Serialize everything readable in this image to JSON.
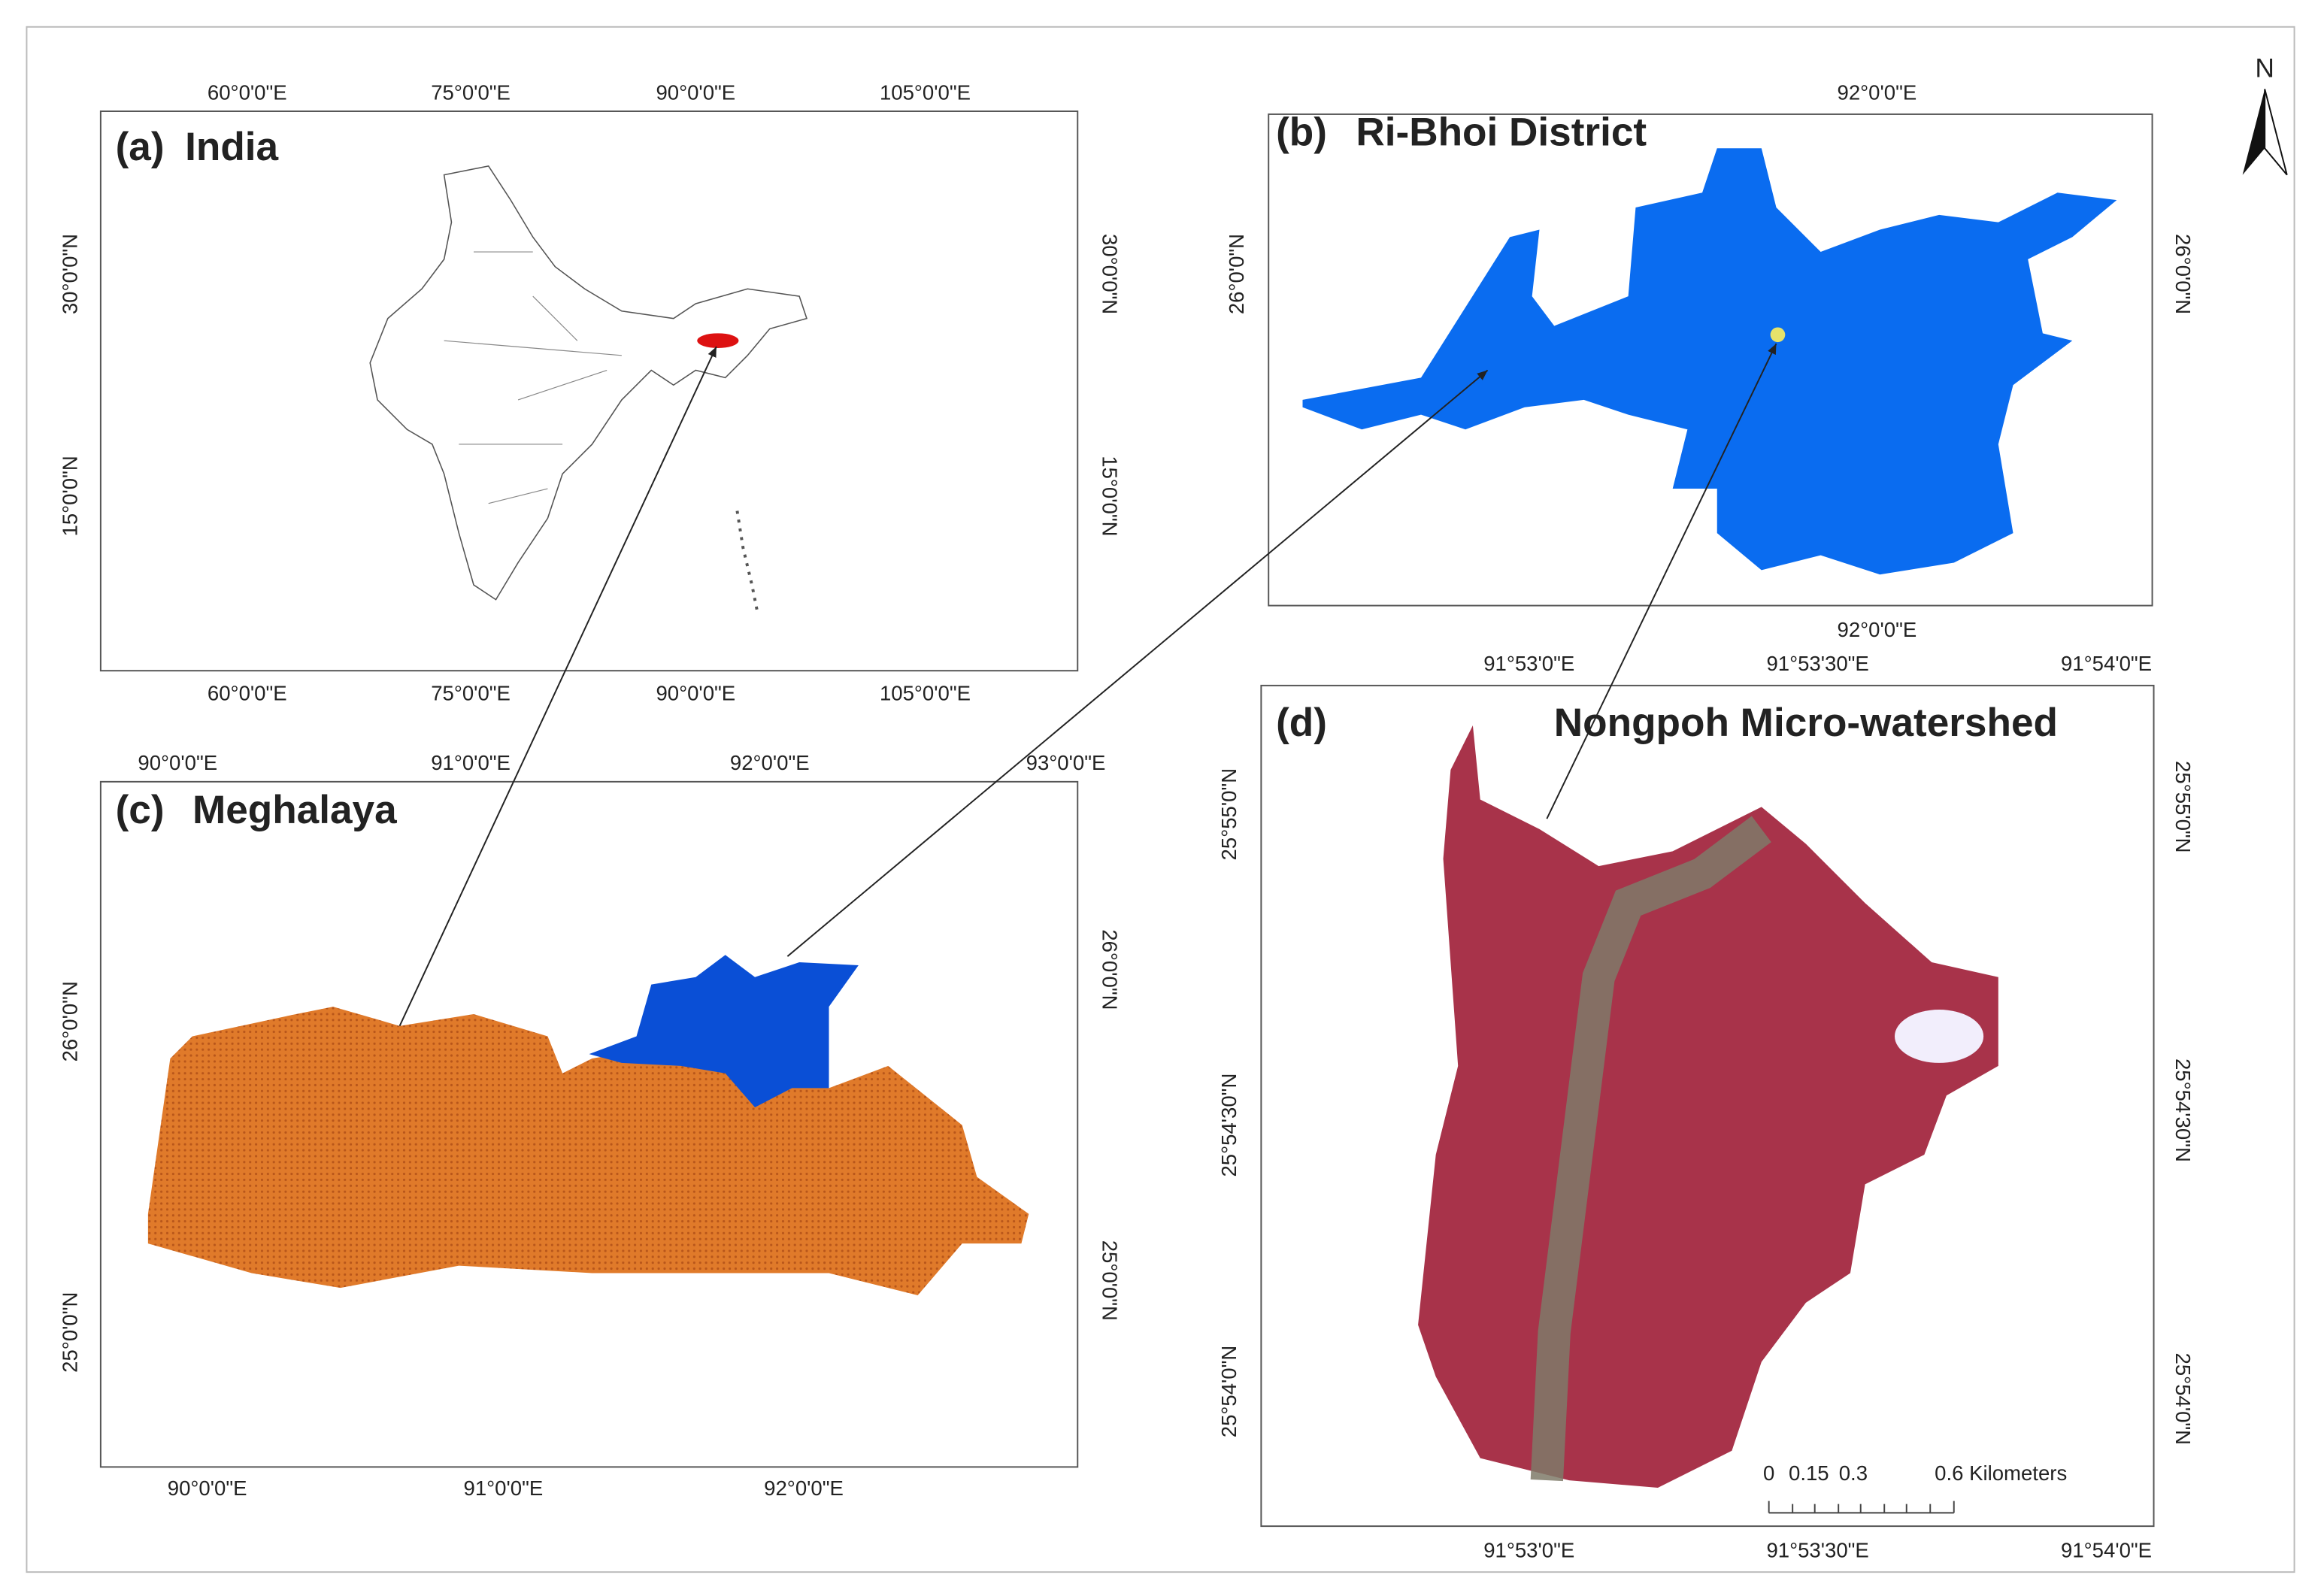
{
  "north": "N",
  "panels": [
    {
      "label": "(a)",
      "title": "India",
      "top_ticks": [
        "60°0'0\"E",
        "75°0'0\"E",
        "90°0'0\"E",
        "105°0'0\"E"
      ],
      "bottom_ticks": [
        "60°0'0\"E",
        "75°0'0\"E",
        "90°0'0\"E",
        "105°0'0\"E"
      ],
      "left_ticks": [
        "30°0'0\"N",
        "15°0'0\"N"
      ],
      "right_ticks": [
        "30°0'0\"N",
        "15°0'0\"N"
      ]
    },
    {
      "label": "(b)",
      "title": "Ri-Bhoi District",
      "top_ticks": [
        "92°0'0\"E"
      ],
      "bottom_ticks": [
        "92°0'0\"E"
      ],
      "left_ticks": [
        "26°0'0\"N"
      ],
      "right_ticks": [
        "26°0'0\"N"
      ]
    },
    {
      "label": "(c)",
      "title": "Meghalaya",
      "top_ticks": [
        "90°0'0\"E",
        "91°0'0\"E",
        "92°0'0\"E",
        "93°0'0\"E"
      ],
      "bottom_ticks": [
        "90°0'0\"E",
        "91°0'0\"E",
        "92°0'0\"E"
      ],
      "left_ticks": [
        "26°0'0\"N",
        "25°0'0\"N"
      ],
      "right_ticks": [
        "26°0'0\"N",
        "25°0'0\"N"
      ]
    },
    {
      "label": "(d)",
      "title": "Nongpoh Micro-watershed",
      "top_ticks": [
        "91°53'0\"E",
        "91°53'30\"E",
        "91°54'0\"E"
      ],
      "bottom_ticks": [
        "91°53'0\"E",
        "91°53'30\"E",
        "91°54'0\"E"
      ],
      "left_ticks": [
        "25°55'0\"N",
        "25°54'30\"N",
        "25°54'0\"N"
      ],
      "right_ticks": [
        "25°55'0\"N",
        "25°54'30\"N",
        "25°54'0\"N"
      ]
    }
  ],
  "scale_bar": {
    "labels": [
      "0",
      "0.15",
      "0.3",
      "0.6 Kilometers"
    ]
  }
}
